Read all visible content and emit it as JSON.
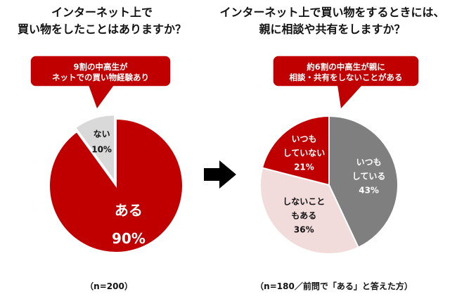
{
  "left": {
    "title_line1": "インターネット上で",
    "title_line2": "買い物をしたことはありますか？",
    "callout_line1": "9割の中高生が",
    "callout_line2": "ネットでの買い物経験あり",
    "note": "（n=200）"
  },
  "right": {
    "title_line1": "インターネット上で買い物をするときには、",
    "title_line2": "親に相談や共有をしますか？",
    "callout_line1": "約6割の中高生が親に",
    "callout_line2": "相談・共有をしないことがある",
    "note": "（n=180／前問で「ある」と答えた方）"
  },
  "colors": {
    "red": "#c00000",
    "gray": "#7f7f7f",
    "light_gray": "#d9d9d9",
    "pink": "#f2dcdb",
    "dark_text": "#111111",
    "white": "#ffffff"
  },
  "chart_data": [
    {
      "type": "pie",
      "title": "インターネット上で買い物をしたことはありますか？",
      "slices": [
        {
          "lines": [
            "ある",
            "90%"
          ],
          "value": 90,
          "color": "#c00000",
          "text_color": "#ffffff"
        },
        {
          "lines": [
            "ない",
            "10%"
          ],
          "value": 10,
          "color": "#d9d9d9",
          "text_color": "#111111"
        }
      ],
      "note": "（n=200）"
    },
    {
      "type": "pie",
      "title": "インターネット上で買い物をするときには、親に相談や共有をしますか？",
      "slices": [
        {
          "lines": [
            "いつも",
            "している",
            "43%"
          ],
          "value": 43,
          "color": "#7f7f7f",
          "text_color": "#ffffff"
        },
        {
          "lines": [
            "しないこと",
            "もある",
            "36%"
          ],
          "value": 36,
          "color": "#f2dcdb",
          "text_color": "#111111"
        },
        {
          "lines": [
            "いつも",
            "していない",
            "21%"
          ],
          "value": 21,
          "color": "#c00000",
          "text_color": "#ffffff"
        }
      ],
      "note": "（n=180／前問で「ある」と答えた方）"
    }
  ]
}
